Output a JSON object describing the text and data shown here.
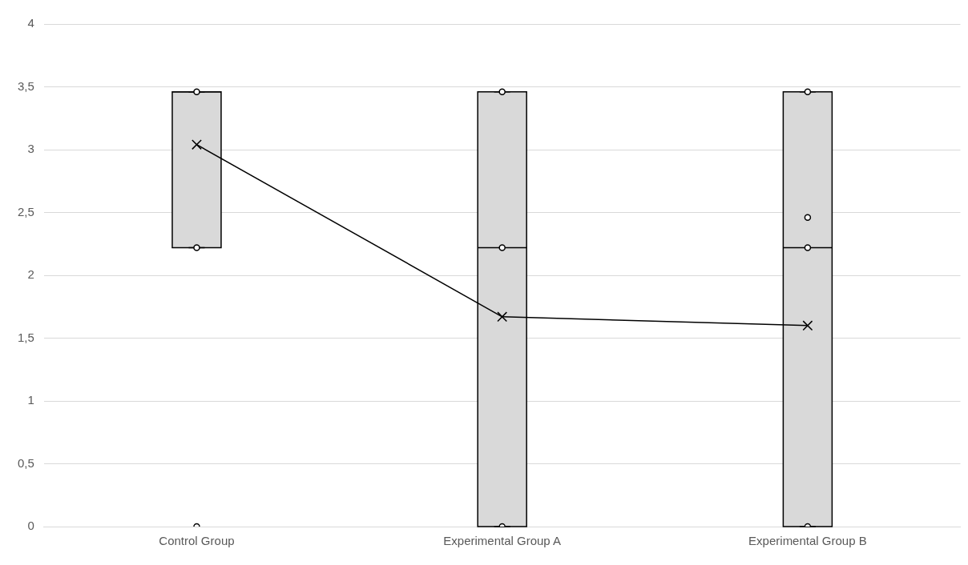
{
  "chart_data": {
    "type": "box",
    "categories": [
      "Control Group",
      "Experimental Group A",
      "Experimental Group B"
    ],
    "ylim": [
      0,
      4
    ],
    "yticks": [
      {
        "value": 0,
        "label": "0"
      },
      {
        "value": 0.5,
        "label": "0,5"
      },
      {
        "value": 1,
        "label": "1"
      },
      {
        "value": 1.5,
        "label": "1,5"
      },
      {
        "value": 2,
        "label": "2"
      },
      {
        "value": 2.5,
        "label": "2,5"
      },
      {
        "value": 3,
        "label": "3"
      },
      {
        "value": 3.5,
        "label": "3,5"
      },
      {
        "value": 4,
        "label": "4"
      }
    ],
    "grid": "y",
    "legend": false,
    "series": [
      {
        "type": "box",
        "color": "#d9d9d9",
        "boxes": [
          {
            "low": 2.22,
            "q1": 2.22,
            "median": 3.46,
            "q3": 3.46,
            "high": 3.46
          },
          {
            "low": 0,
            "q1": 0,
            "median": 2.22,
            "q3": 3.46,
            "high": 3.46
          },
          {
            "low": 0,
            "q1": 0,
            "median": 2.22,
            "q3": 3.46,
            "high": 3.46
          }
        ]
      },
      {
        "type": "line",
        "color": "#000000",
        "marker": "cross",
        "values": [
          3.04,
          1.67,
          1.6
        ]
      },
      {
        "type": "scatter",
        "color": "#000000",
        "marker": "circle",
        "x": [
          "Control Group",
          "Control Group",
          "Control Group",
          "Experimental Group A",
          "Experimental Group A",
          "Experimental Group A",
          "Experimental Group B",
          "Experimental Group B",
          "Experimental Group B",
          "Experimental Group B"
        ],
        "values": [
          3.46,
          2.22,
          0,
          3.46,
          2.22,
          0,
          3.46,
          2.46,
          2.22,
          0
        ]
      }
    ]
  }
}
